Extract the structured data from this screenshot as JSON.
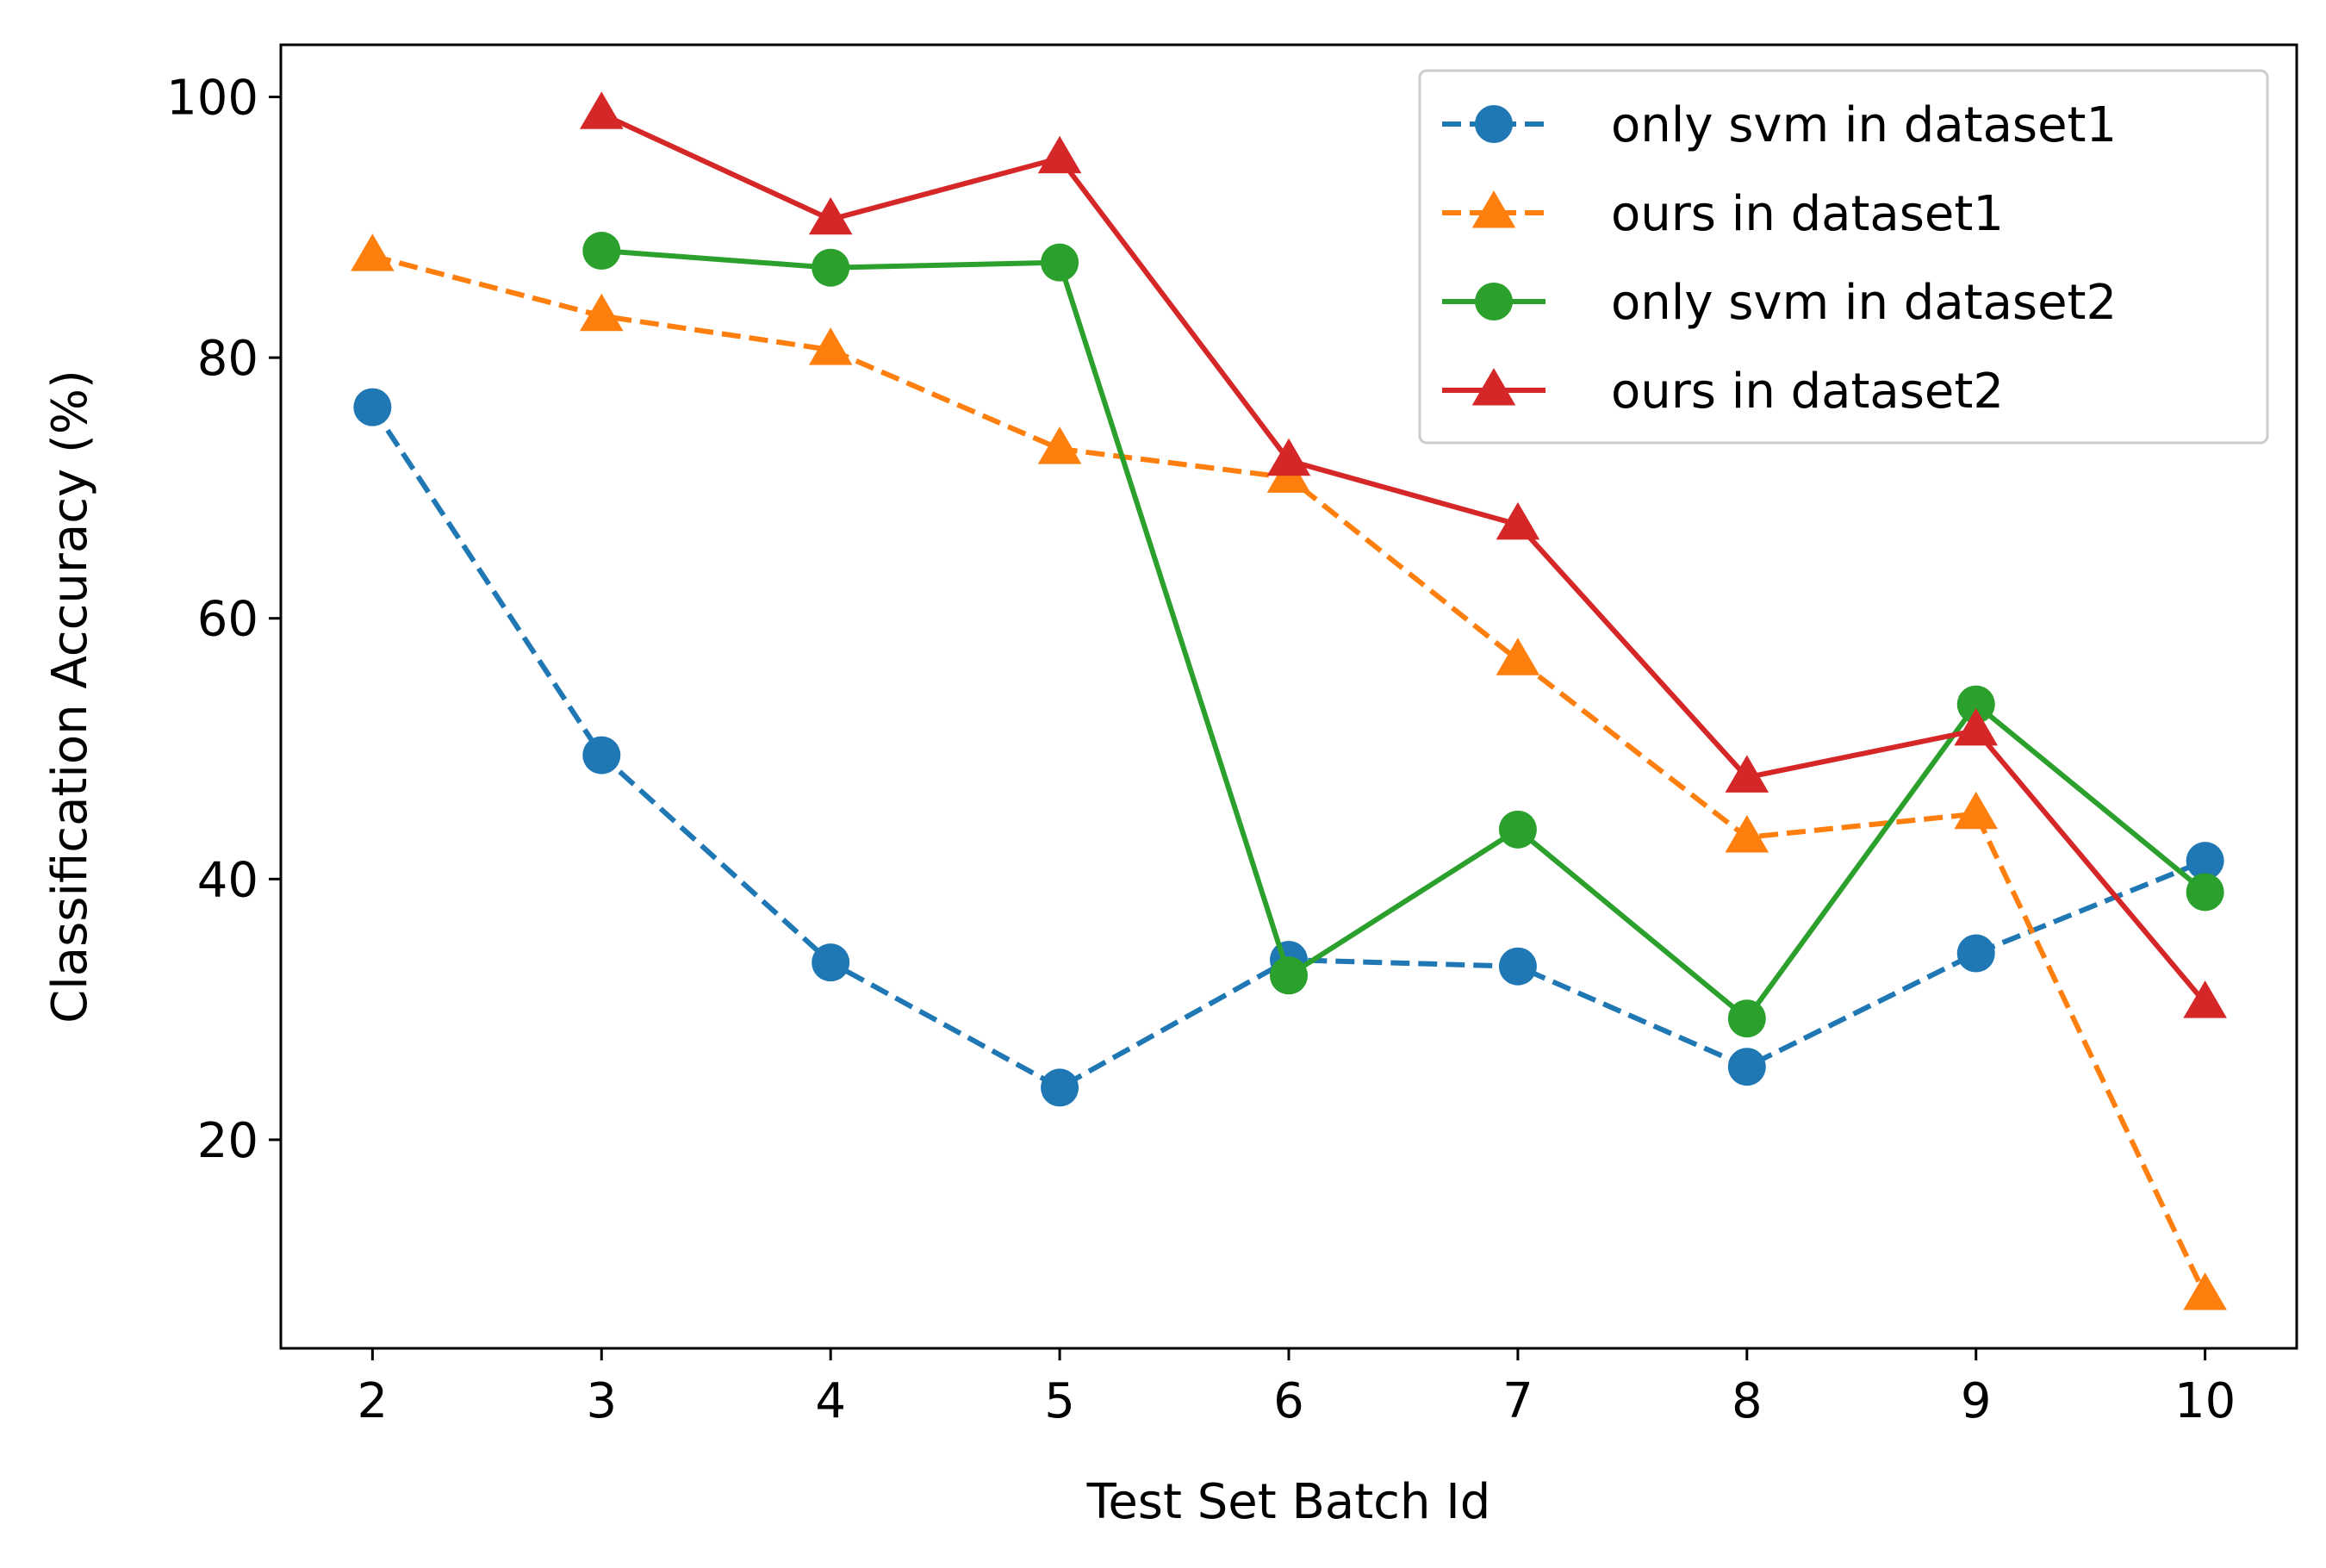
{
  "chart_data": {
    "type": "line",
    "title": "",
    "xlabel": "Test Set Batch Id",
    "ylabel": "Classification Accuracy (%)",
    "xlim": [
      1.6,
      10.4
    ],
    "ylim": [
      4,
      104
    ],
    "xticks": [
      2,
      3,
      4,
      5,
      6,
      7,
      8,
      9,
      10
    ],
    "yticks": [
      20,
      40,
      60,
      80,
      100
    ],
    "grid": false,
    "legend_position": "top-right",
    "series": [
      {
        "name": "only svm in dataset1",
        "color": "#1f77b4",
        "line_style": "dashed",
        "marker": "circle",
        "x": [
          2,
          3,
          4,
          5,
          6,
          7,
          8,
          9,
          10
        ],
        "y": [
          76.2,
          49.5,
          33.6,
          24.0,
          33.8,
          33.3,
          25.6,
          34.3,
          41.4
        ]
      },
      {
        "name": "ours in dataset1",
        "color": "#ff7f0e",
        "line_style": "dashed",
        "marker": "triangle",
        "x": [
          2,
          3,
          4,
          5,
          6,
          7,
          8,
          9,
          10
        ],
        "y": [
          87.8,
          83.2,
          80.6,
          73.0,
          70.8,
          56.8,
          43.2,
          45.0,
          8.1
        ]
      },
      {
        "name": "only svm in dataset2",
        "color": "#2ca02c",
        "line_style": "solid",
        "marker": "circle",
        "x": [
          3,
          4,
          5,
          6,
          7,
          8,
          9,
          10
        ],
        "y": [
          88.2,
          86.9,
          87.3,
          32.6,
          43.8,
          29.3,
          53.4,
          39.0
        ]
      },
      {
        "name": "ours in dataset2",
        "color": "#d62728",
        "line_style": "solid",
        "marker": "triangle",
        "x": [
          3,
          4,
          5,
          6,
          7,
          8,
          9,
          10
        ],
        "y": [
          98.7,
          90.6,
          95.3,
          72.1,
          67.2,
          47.8,
          51.4,
          30.5
        ]
      }
    ]
  }
}
